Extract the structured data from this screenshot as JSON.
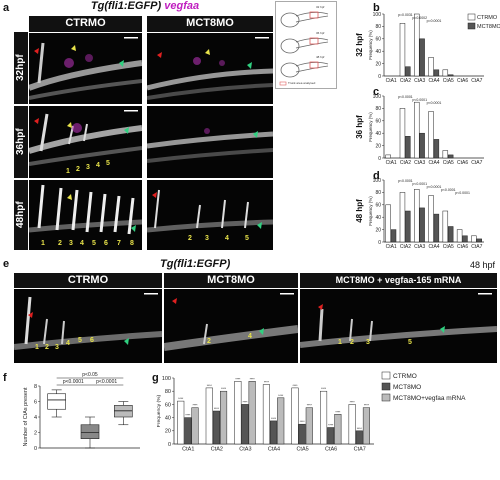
{
  "panel_letters": {
    "a": "a",
    "b": "b",
    "c": "c",
    "d": "d",
    "e": "e",
    "f": "f",
    "g": "g"
  },
  "panel_a": {
    "title_left": "Tg(fli1:EGFP)",
    "title_right": "vegfaa",
    "col_ctrl": "CTRMO",
    "col_mct8": "MCT8MO",
    "rows": [
      "32hpf",
      "36hpf",
      "48hpf"
    ],
    "ctrl_numbers_36": [
      "1",
      "2",
      "3",
      "4",
      "5"
    ],
    "ctrl_numbers_48": [
      "1",
      "2",
      "3",
      "4",
      "5",
      "6",
      "7",
      "8"
    ],
    "mct8_numbers_48": [
      "2",
      "3",
      "4",
      "5"
    ],
    "schematic_labels": [
      "32 hpf",
      "36 hpf",
      "48 hpf"
    ],
    "legend_text": "Trunk area analysed"
  },
  "panel_e": {
    "title_left": "Tg(fli1:EGFP)",
    "time": "48 hpf",
    "cols": [
      "CTRMO",
      "MCT8MO",
      "MCT8MO + vegfaa-165 mRNA"
    ],
    "numbers_ctrl": [
      "1",
      "2",
      "3",
      "4",
      "5",
      "6"
    ],
    "numbers_mct8": [
      "2",
      "4"
    ],
    "numbers_rescue": [
      "1",
      "2",
      "3",
      "5"
    ]
  },
  "chart_data": [
    {
      "id": "b",
      "type": "bar",
      "row_label": "32 hpf",
      "ylabel": "Frequency (%)",
      "categories": [
        "CtA1",
        "CtA2",
        "CtA3",
        "CtA4",
        "CtA5",
        "CtA6",
        "CtA7"
      ],
      "ylim": [
        0,
        100
      ],
      "yticks": [
        0,
        20,
        40,
        60,
        80,
        100
      ],
      "series": [
        {
          "name": "CTRMO",
          "color": "#ffffff",
          "values": [
            0,
            85,
            100,
            30,
            10,
            0,
            0
          ]
        },
        {
          "name": "MCT8MO",
          "color": "#555555",
          "values": [
            0,
            15,
            60,
            10,
            2,
            0,
            0
          ]
        }
      ],
      "annotations": [
        "p=0.0031",
        "p=0.0002",
        "p=0.0001"
      ]
    },
    {
      "id": "c",
      "type": "bar",
      "row_label": "36 hpf",
      "ylabel": "Frequency (%)",
      "categories": [
        "CtA1",
        "CtA2",
        "CtA3",
        "CtA4",
        "CtA5",
        "CtA6",
        "CtA7"
      ],
      "ylim": [
        0,
        100
      ],
      "yticks": [
        0,
        20,
        40,
        60,
        80,
        100
      ],
      "series": [
        {
          "name": "CTRMO",
          "color": "#ffffff",
          "values": [
            5,
            80,
            90,
            75,
            12,
            0,
            0
          ]
        },
        {
          "name": "MCT8MO",
          "color": "#555555",
          "values": [
            0,
            35,
            40,
            30,
            5,
            0,
            0
          ]
        }
      ],
      "annotations": [
        "p<0.0001",
        "p<0.0001",
        "p<0.0001"
      ]
    },
    {
      "id": "d",
      "type": "bar",
      "row_label": "48 hpf",
      "ylabel": "Frequency (%)",
      "categories": [
        "CtA1",
        "CtA2",
        "CtA3",
        "CtA4",
        "CtA5",
        "CtA6",
        "CtA7"
      ],
      "ylim": [
        0,
        100
      ],
      "yticks": [
        0,
        20,
        40,
        60,
        80,
        100
      ],
      "series": [
        {
          "name": "CTRMO",
          "color": "#ffffff",
          "values": [
            60,
            80,
            85,
            75,
            50,
            20,
            10
          ]
        },
        {
          "name": "MCT8MO",
          "color": "#555555",
          "values": [
            20,
            50,
            55,
            45,
            25,
            10,
            5
          ]
        }
      ],
      "annotations": [
        "p<0.0001",
        "p<0.0001",
        "p<0.0001",
        "p<0.0001",
        "p<0.0001"
      ]
    },
    {
      "id": "f",
      "type": "box",
      "ylabel": "Number of CtAs present",
      "ylim": [
        0,
        8
      ],
      "yticks": [
        0,
        2,
        4,
        6,
        8
      ],
      "series": [
        {
          "name": "CTRMO",
          "color": "#ffffff",
          "min": 4,
          "q1": 5,
          "median": 6.2,
          "q3": 7,
          "max": 7.5
        },
        {
          "name": "MCT8MO",
          "color": "#888888",
          "min": 0,
          "q1": 1.2,
          "median": 2,
          "q3": 3,
          "max": 4
        },
        {
          "name": "MCT8MO+vegfaa mRNA",
          "color": "#bbbbbb",
          "min": 3,
          "q1": 4,
          "median": 4.8,
          "q3": 5.5,
          "max": 6
        }
      ],
      "annotations": [
        "p<0.05",
        "p<0.0001",
        "p<0.0001"
      ]
    },
    {
      "id": "g",
      "type": "bar",
      "ylabel": "Frequency (%)",
      "categories": [
        "CtA1",
        "CtA2",
        "CtA3",
        "CtA4",
        "CtA5",
        "CtA6",
        "CtA7"
      ],
      "ylim": [
        0,
        100
      ],
      "yticks": [
        0,
        20,
        40,
        60,
        80,
        100
      ],
      "series": [
        {
          "name": "CTRMO",
          "color": "#ffffff",
          "values": [
            65,
            85,
            95,
            90,
            85,
            80,
            60
          ]
        },
        {
          "name": "MCT8MO",
          "color": "#555555",
          "values": [
            40,
            50,
            60,
            35,
            30,
            25,
            20
          ]
        },
        {
          "name": "MCT8MO+vegfaa mRNA",
          "color": "#bbbbbb",
          "values": [
            55,
            80,
            95,
            70,
            55,
            45,
            55
          ]
        }
      ],
      "sig_label": "****"
    }
  ],
  "legend_bcd": [
    {
      "name": "CTRMO",
      "color": "#ffffff"
    },
    {
      "name": "MCT8MO",
      "color": "#555555"
    }
  ],
  "legend_g": [
    {
      "name": "CTRMO",
      "color": "#ffffff"
    },
    {
      "name": "MCT8MO",
      "color": "#555555"
    },
    {
      "name": "MCT8MO+vegfaa mRNA",
      "color": "#bbbbbb"
    }
  ]
}
